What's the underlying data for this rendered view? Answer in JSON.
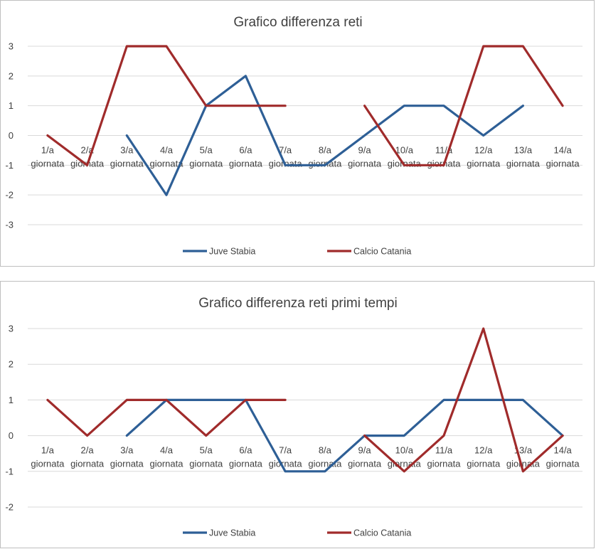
{
  "colors": {
    "juve_stabia": "#2e5f96",
    "calcio_catania": "#a02b2b",
    "grid": "#d9d9d9"
  },
  "chart_data": [
    {
      "type": "line",
      "title": "Grafico differenza reti",
      "xlabel": "",
      "ylabel": "",
      "categories": [
        [
          "1/a",
          "giornata"
        ],
        [
          "2/a",
          "giornata"
        ],
        [
          "3/a",
          "giornata"
        ],
        [
          "4/a",
          "giornata"
        ],
        [
          "5/a",
          "giornata"
        ],
        [
          "6/a",
          "giornata"
        ],
        [
          "7/a",
          "giornata"
        ],
        [
          "8/a",
          "giornata"
        ],
        [
          "9/a",
          "giornata"
        ],
        [
          "10/a",
          "giornata"
        ],
        [
          "11/a",
          "giornata"
        ],
        [
          "12/a",
          "giornata"
        ],
        [
          "13/a",
          "giornata"
        ],
        [
          "14/a",
          "giornata"
        ]
      ],
      "ylim": [
        -3,
        3
      ],
      "yticks": [
        3,
        2,
        1,
        0,
        -1,
        -2,
        -3
      ],
      "grid": true,
      "legend_position": "bottom",
      "series": [
        {
          "name": "Juve Stabia",
          "color_key": "juve_stabia",
          "values": [
            null,
            null,
            0,
            -2,
            1,
            2,
            -1,
            -1,
            0,
            1,
            1,
            0,
            1,
            null
          ]
        },
        {
          "name": "Calcio Catania",
          "color_key": "calcio_catania",
          "values": [
            0,
            -1,
            3,
            3,
            1,
            1,
            1,
            null,
            1,
            -1,
            -1,
            3,
            3,
            1
          ]
        }
      ]
    },
    {
      "type": "line",
      "title": "Grafico differenza reti primi tempi",
      "xlabel": "",
      "ylabel": "",
      "categories": [
        [
          "1/a",
          "giornata"
        ],
        [
          "2/a",
          "giornata"
        ],
        [
          "3/a",
          "giornata"
        ],
        [
          "4/a",
          "giornata"
        ],
        [
          "5/a",
          "giornata"
        ],
        [
          "6/a",
          "giornata"
        ],
        [
          "7/a",
          "giornata"
        ],
        [
          "8/a",
          "giornata"
        ],
        [
          "9/a",
          "giornata"
        ],
        [
          "10/a",
          "giornata"
        ],
        [
          "11/a",
          "giornata"
        ],
        [
          "12/a",
          "giornata"
        ],
        [
          "13/a",
          "giornata"
        ],
        [
          "14/a",
          "giornata"
        ]
      ],
      "ylim": [
        -2,
        3
      ],
      "yticks": [
        3,
        2,
        1,
        0,
        -1,
        -2
      ],
      "grid": true,
      "legend_position": "bottom",
      "series": [
        {
          "name": "Juve Stabia",
          "color_key": "juve_stabia",
          "values": [
            null,
            null,
            0,
            1,
            1,
            1,
            -1,
            -1,
            0,
            0,
            1,
            1,
            1,
            0
          ]
        },
        {
          "name": "Calcio Catania",
          "color_key": "calcio_catania",
          "values": [
            1,
            0,
            1,
            1,
            0,
            1,
            1,
            null,
            0,
            -1,
            0,
            3,
            -1,
            0
          ]
        }
      ]
    }
  ]
}
